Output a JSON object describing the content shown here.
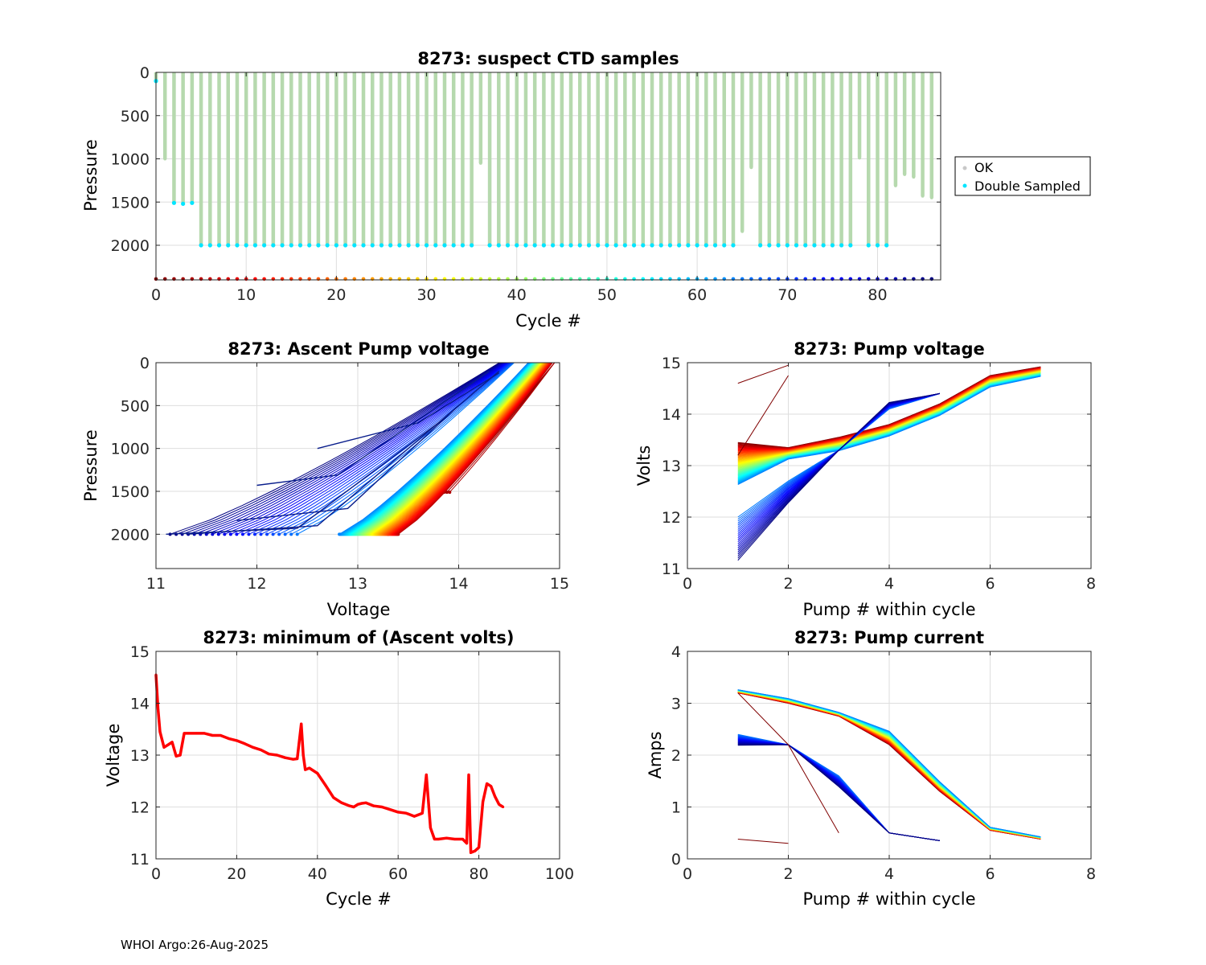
{
  "footer": "WHOI Argo:26-Aug-2025",
  "chart_data": [
    {
      "id": "p1",
      "type": "scatter",
      "title": "8273: suspect CTD samples",
      "xlabel": "Cycle #",
      "ylabel": "Pressure",
      "xlim": [
        0,
        87
      ],
      "ylim": [
        0,
        2400
      ],
      "y_reversed": true,
      "xticks": [
        0,
        10,
        20,
        30,
        40,
        50,
        60,
        70,
        80
      ],
      "yticks": [
        0,
        500,
        1000,
        1500,
        2000
      ],
      "grid": true,
      "legend": {
        "position": "outside-right",
        "entries": [
          {
            "label": "OK",
            "color": "#c8c8c8"
          },
          {
            "label": "Double Sampled",
            "color": "#00e5ff"
          }
        ]
      },
      "ok_color": "#b6d9ae",
      "double_color": "#00e5ff",
      "profiles": {
        "cycles": [
          0,
          1,
          2,
          3,
          4,
          5,
          6,
          7,
          8,
          9,
          10,
          11,
          12,
          13,
          14,
          15,
          16,
          17,
          18,
          19,
          20,
          21,
          22,
          23,
          24,
          25,
          26,
          27,
          28,
          29,
          30,
          31,
          32,
          33,
          34,
          35,
          36,
          37,
          38,
          39,
          40,
          41,
          42,
          43,
          44,
          45,
          46,
          47,
          48,
          49,
          50,
          51,
          52,
          53,
          54,
          55,
          56,
          57,
          58,
          59,
          60,
          61,
          62,
          63,
          64,
          65,
          66,
          67,
          68,
          69,
          70,
          71,
          72,
          73,
          74,
          75,
          76,
          77,
          78,
          79,
          80,
          81,
          82,
          83,
          84,
          85,
          86
        ],
        "max_pressure": [
          100,
          1000,
          1510,
          1520,
          1510,
          2000,
          2000,
          2000,
          2000,
          2000,
          2000,
          2000,
          2000,
          2000,
          2000,
          2000,
          2000,
          2000,
          2000,
          2000,
          2000,
          2000,
          2000,
          2000,
          2000,
          2000,
          2000,
          2000,
          2000,
          2000,
          2000,
          2000,
          2000,
          2000,
          2000,
          2000,
          1050,
          2000,
          2000,
          2000,
          2000,
          2000,
          2000,
          2000,
          2000,
          2000,
          2000,
          2000,
          2000,
          2000,
          2000,
          2000,
          2000,
          2000,
          2000,
          2000,
          2000,
          2000,
          2000,
          2000,
          2000,
          2000,
          2000,
          2000,
          2000,
          1840,
          1100,
          2000,
          2000,
          2000,
          2000,
          2000,
          2000,
          2000,
          2000,
          2000,
          2000,
          2000,
          990,
          2000,
          2000,
          2000,
          1310,
          1180,
          1210,
          1430,
          1450
        ],
        "double_sampled": [
          true,
          false,
          true,
          true,
          true,
          true,
          true,
          true,
          true,
          true,
          true,
          true,
          true,
          true,
          true,
          true,
          true,
          true,
          true,
          true,
          true,
          true,
          true,
          true,
          true,
          true,
          true,
          true,
          true,
          true,
          true,
          true,
          true,
          true,
          true,
          true,
          false,
          true,
          true,
          true,
          true,
          true,
          true,
          true,
          true,
          true,
          true,
          true,
          true,
          true,
          true,
          true,
          true,
          true,
          true,
          true,
          true,
          true,
          true,
          true,
          true,
          true,
          true,
          true,
          true,
          false,
          false,
          true,
          true,
          true,
          true,
          true,
          true,
          true,
          true,
          true,
          true,
          true,
          false,
          true,
          true,
          true,
          false,
          false,
          false,
          false,
          false
        ]
      },
      "cycle_marker_pressure": 2390
    },
    {
      "id": "p2",
      "type": "line",
      "title": "8273: Ascent Pump voltage",
      "xlabel": "Voltage",
      "ylabel": "Pressure",
      "xlim": [
        11,
        15
      ],
      "ylim": [
        0,
        2400
      ],
      "y_reversed": true,
      "xticks": [
        11,
        12,
        13,
        14,
        15
      ],
      "yticks": [
        0,
        500,
        1000,
        1500,
        2000
      ],
      "grid": true,
      "series_by_cycle": true,
      "series_note": "one voltage-vs-pressure ascent profile per cycle, colored dark red (early) through rainbow to dark blue (late)"
    },
    {
      "id": "p3",
      "type": "line",
      "title": "8273: Pump voltage",
      "xlabel": "Pump # within cycle",
      "ylabel": "Volts",
      "xlim": [
        0,
        8
      ],
      "ylim": [
        11,
        15
      ],
      "xticks": [
        0,
        2,
        4,
        6,
        8
      ],
      "yticks": [
        11,
        12,
        13,
        14,
        15
      ],
      "grid": true,
      "series_by_cycle": true
    },
    {
      "id": "p4",
      "type": "line",
      "title": "8273: minimum of (Ascent volts)",
      "xlabel": "Cycle #",
      "ylabel": "Voltage",
      "xlim": [
        0,
        100
      ],
      "ylim": [
        11,
        15
      ],
      "xticks": [
        0,
        20,
        40,
        60,
        80,
        100
      ],
      "yticks": [
        11,
        12,
        13,
        14,
        15
      ],
      "grid": true,
      "series": [
        {
          "name": "min ascent volts",
          "color": "#ff0000",
          "x": [
            0,
            0.5,
            1,
            2,
            3,
            4,
            5,
            6,
            7,
            8,
            10,
            12,
            14,
            16,
            18,
            20,
            22,
            24,
            26,
            28,
            30,
            32,
            34,
            35,
            36,
            36.5,
            37,
            38,
            40,
            42,
            44,
            46,
            48,
            49,
            50,
            51,
            52,
            54,
            56,
            58,
            60,
            62,
            64,
            65,
            66,
            67,
            68,
            69,
            70,
            72,
            74,
            76,
            77,
            77.5,
            78,
            79,
            80,
            81,
            82,
            83,
            84,
            85,
            86
          ],
          "values": [
            14.55,
            13.9,
            13.45,
            13.15,
            13.2,
            13.25,
            12.98,
            13.0,
            13.42,
            13.42,
            13.42,
            13.42,
            13.38,
            13.38,
            13.32,
            13.28,
            13.22,
            13.15,
            13.1,
            13.02,
            13.0,
            12.95,
            12.92,
            12.93,
            13.6,
            13.0,
            12.72,
            12.75,
            12.65,
            12.42,
            12.18,
            12.08,
            12.02,
            12.0,
            12.05,
            12.07,
            12.08,
            12.02,
            12.0,
            11.95,
            11.9,
            11.88,
            11.82,
            11.85,
            11.88,
            12.62,
            11.6,
            11.38,
            11.38,
            11.4,
            11.38,
            11.38,
            11.3,
            12.62,
            11.12,
            11.15,
            11.22,
            12.1,
            12.45,
            12.4,
            12.2,
            12.05,
            12.0
          ]
        }
      ]
    },
    {
      "id": "p5",
      "type": "line",
      "title": "8273: Pump current",
      "xlabel": "Pump # within cycle",
      "ylabel": "Amps",
      "xlim": [
        0,
        8
      ],
      "ylim": [
        0,
        4
      ],
      "xticks": [
        0,
        2,
        4,
        6,
        8
      ],
      "yticks": [
        0,
        1,
        2,
        3,
        4
      ],
      "grid": true,
      "series_by_cycle": true
    }
  ]
}
